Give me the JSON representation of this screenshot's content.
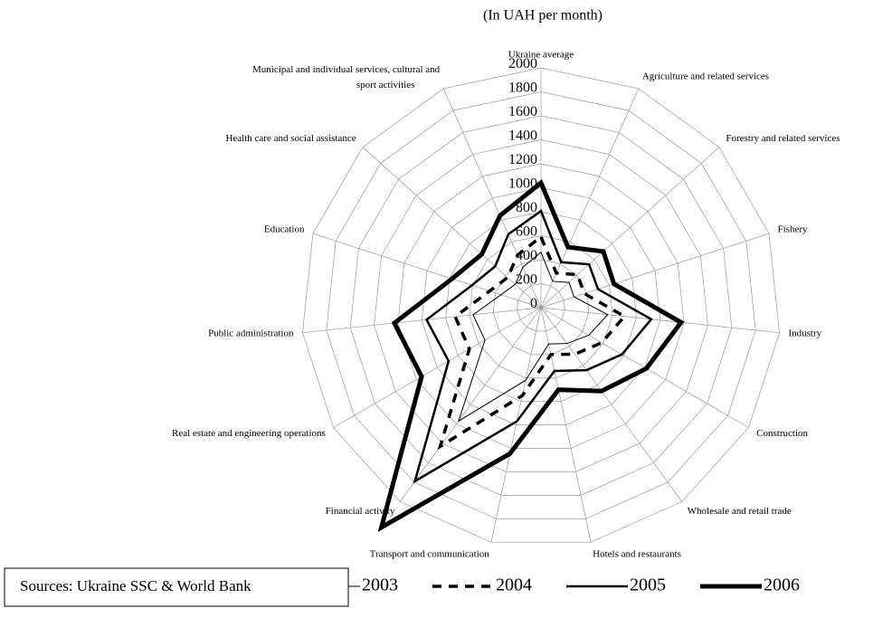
{
  "chart_data": {
    "type": "radar",
    "subtitle": "(In UAH per month)",
    "categories": [
      "Ukraine average",
      "Agriculture and related services",
      "Forestry and related services",
      "Fishery",
      "Industry",
      "Construction",
      "Wholesale and  retail trade",
      "Hotels and restaurants",
      "Transport and communication",
      "Financial activity",
      "Real estate and engineering operations",
      "Public administration",
      "Education",
      "Health care and social assistance",
      "Municipal and individual services, cultural and sport activities"
    ],
    "series": [
      {
        "name": "2003",
        "color": "#000000",
        "values": [
          462,
          240,
          315,
          290,
          560,
          460,
          370,
          310,
          620,
          1170,
          540,
          570,
          350,
          290,
          370
        ]
      },
      {
        "name": "2004",
        "color": "#000000",
        "values": [
          590,
          315,
          410,
          380,
          700,
          585,
          480,
          400,
          750,
          1430,
          690,
          720,
          450,
          375,
          480
        ]
      },
      {
        "name": "2005",
        "color": "#000000",
        "values": [
          806,
          415,
          540,
          500,
          925,
          780,
          645,
          540,
          970,
          1790,
          890,
          960,
          605,
          515,
          670
        ]
      },
      {
        "name": "2006",
        "color": "#000000",
        "values": [
          1041,
          553,
          700,
          640,
          1175,
          1015,
          860,
          700,
          1245,
          2265,
          1150,
          1230,
          780,
          665,
          840
        ]
      }
    ],
    "ylim": [
      0,
      2000
    ],
    "yticks": [
      0,
      200,
      400,
      600,
      800,
      1000,
      1200,
      1400,
      1600,
      1800,
      2000
    ],
    "grid": true,
    "source": "Sources: Ukraine SSC & World Bank"
  }
}
